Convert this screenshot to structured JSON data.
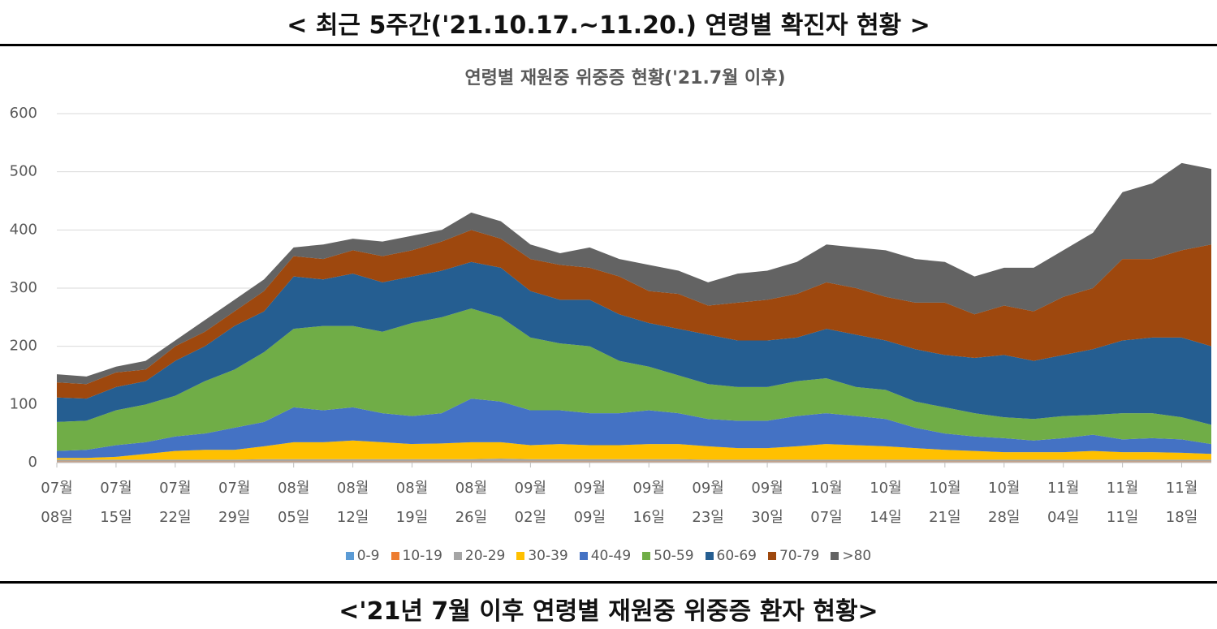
{
  "header": {
    "title": "< 최근 5주간('21.10.17.~11.20.) 연령별 확진자 현황 >"
  },
  "chart_data": {
    "type": "stacked_area",
    "title": "연령별 재원중 위중증 현황('21.7월 이후)",
    "categories": [
      "07월 08일",
      null,
      "07월 15일",
      null,
      "07월 22일",
      null,
      "07월 29일",
      null,
      "08월 05일",
      null,
      "08월 12일",
      null,
      "08월 19일",
      null,
      "08월 26일",
      null,
      "09월 02일",
      null,
      "09월 09일",
      null,
      "09월 16일",
      null,
      "09월 23일",
      null,
      "09월 30일",
      null,
      "10월 07일",
      null,
      "10월 14일",
      null,
      "10월 21일",
      null,
      "10월 28일",
      null,
      "11월 04일",
      null,
      "11월 11일",
      null,
      "11월 18일",
      null
    ],
    "ylim": [
      0,
      600
    ],
    "yticks": [
      0,
      100,
      200,
      300,
      400,
      500,
      600
    ],
    "grid": true,
    "legend": "bottom",
    "series": [
      {
        "name": "0-9",
        "color": "#5b9bd5",
        "values": [
          1,
          1,
          1,
          1,
          1,
          1,
          1,
          1,
          1,
          1,
          1,
          1,
          1,
          1,
          1,
          1,
          1,
          1,
          1,
          1,
          1,
          1,
          1,
          1,
          1,
          1,
          1,
          1,
          1,
          1,
          1,
          1,
          1,
          1,
          1,
          1,
          1,
          1,
          1,
          1
        ]
      },
      {
        "name": "10-19",
        "color": "#ed7d31",
        "values": [
          1,
          1,
          1,
          1,
          1,
          1,
          1,
          1,
          1,
          1,
          1,
          1,
          1,
          1,
          1,
          1,
          1,
          1,
          1,
          1,
          1,
          1,
          1,
          1,
          1,
          1,
          1,
          1,
          1,
          1,
          1,
          1,
          1,
          1,
          1,
          1,
          1,
          1,
          1,
          1
        ]
      },
      {
        "name": "20-29",
        "color": "#a5a5a5",
        "values": [
          3,
          3,
          3,
          3,
          3,
          3,
          3,
          4,
          4,
          4,
          4,
          4,
          4,
          4,
          4,
          5,
          4,
          4,
          4,
          4,
          4,
          4,
          3,
          3,
          3,
          3,
          3,
          3,
          3,
          3,
          3,
          3,
          3,
          3,
          3,
          3,
          3,
          3,
          3,
          3
        ]
      },
      {
        "name": "30-39",
        "color": "#ffc000",
        "values": [
          3,
          3,
          5,
          10,
          15,
          17,
          17,
          22,
          29,
          29,
          32,
          29,
          26,
          27,
          29,
          28,
          24,
          26,
          24,
          24,
          26,
          26,
          23,
          20,
          20,
          23,
          27,
          25,
          23,
          20,
          17,
          15,
          13,
          13,
          13,
          15,
          13,
          13,
          12,
          10
        ]
      },
      {
        "name": "40-49",
        "color": "#4472c4",
        "values": [
          12,
          14,
          20,
          20,
          25,
          28,
          38,
          42,
          60,
          55,
          57,
          50,
          48,
          52,
          75,
          70,
          60,
          58,
          55,
          55,
          58,
          53,
          47,
          47,
          47,
          52,
          53,
          50,
          47,
          35,
          28,
          25,
          24,
          20,
          24,
          28,
          22,
          24,
          23,
          17
        ]
      },
      {
        "name": "50-59",
        "color": "#70ad47",
        "values": [
          50,
          50,
          60,
          65,
          70,
          90,
          100,
          120,
          135,
          145,
          140,
          140,
          160,
          165,
          155,
          145,
          125,
          115,
          115,
          90,
          75,
          65,
          60,
          58,
          58,
          60,
          60,
          50,
          50,
          45,
          45,
          40,
          36,
          37,
          38,
          34,
          45,
          43,
          38,
          33
        ]
      },
      {
        "name": "60-69",
        "color": "#255e91",
        "values": [
          42,
          38,
          40,
          40,
          60,
          60,
          75,
          70,
          90,
          80,
          90,
          85,
          80,
          80,
          80,
          85,
          80,
          75,
          80,
          80,
          75,
          80,
          85,
          80,
          80,
          75,
          85,
          90,
          85,
          90,
          90,
          95,
          107,
          100,
          105,
          113,
          125,
          130,
          137,
          135
        ]
      },
      {
        "name": "70-79",
        "color": "#9e480e",
        "values": [
          26,
          25,
          25,
          20,
          25,
          25,
          25,
          35,
          35,
          35,
          40,
          45,
          45,
          50,
          55,
          50,
          55,
          60,
          55,
          65,
          55,
          60,
          50,
          65,
          70,
          75,
          80,
          80,
          75,
          80,
          90,
          75,
          85,
          85,
          100,
          105,
          140,
          135,
          150,
          175
        ]
      },
      {
        "name": ">80",
        "color": "#636363",
        "values": [
          14,
          13,
          10,
          15,
          10,
          20,
          20,
          20,
          15,
          25,
          20,
          25,
          25,
          20,
          30,
          30,
          25,
          20,
          35,
          30,
          45,
          40,
          40,
          50,
          50,
          55,
          65,
          70,
          80,
          75,
          70,
          65,
          65,
          75,
          80,
          95,
          115,
          130,
          150,
          130
        ]
      }
    ]
  },
  "footer": {
    "caption": "<'21년 7월 이후 연령별 재원중 위중증 환자 현황>"
  }
}
